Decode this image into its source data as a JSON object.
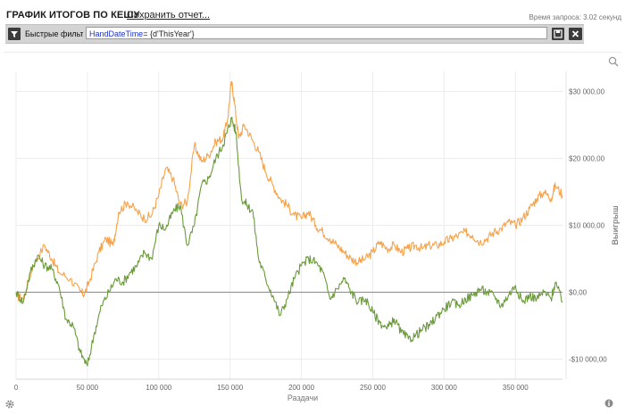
{
  "header": {
    "title": "ГРАФИК ИТОГОВ ПО КЕШУ",
    "save_link": "Сохранить отчет...",
    "query_time": "Время запроса: 3.02 секунд"
  },
  "filter_bar": {
    "label": "Быстрые фильтры",
    "expression_keyword": "HandDateTime",
    "expression_rest": "= {d'ThisYear'}",
    "icons": [
      "filter-icon",
      "save-icon",
      "close-icon"
    ]
  },
  "toolbar_icons": [
    "zoom-icon",
    "gear-icon",
    "info-icon"
  ],
  "colors": {
    "orange": "#f7a24a",
    "green": "#6a9a3a",
    "zero_line": "#8a8a8a",
    "grid": "#ececec"
  },
  "chart_data": {
    "type": "line",
    "title": "",
    "xlabel": "Раздачи",
    "ylabel": "Выигрыш",
    "xlim": [
      0,
      383000
    ],
    "ylim": [
      -13000,
      33000
    ],
    "x_ticks": [
      0,
      50000,
      100000,
      150000,
      200000,
      250000,
      300000,
      350000
    ],
    "x_tick_labels": [
      "0",
      "50 000",
      "100 000",
      "150 000",
      "200 000",
      "250 000",
      "300 000",
      "350 000"
    ],
    "y_ticks": [
      30000,
      20000,
      10000,
      0,
      -10000
    ],
    "y_tick_labels": [
      "$30 000,00",
      "$20 000,00",
      "$10 000,00",
      "$0,00",
      "-$10 000,00"
    ],
    "grid": true,
    "series": [
      {
        "color": "#f7a24a",
        "x": [
          0,
          5000,
          12000,
          20000,
          25000,
          30000,
          38000,
          45000,
          48000,
          52000,
          58000,
          63000,
          68000,
          72000,
          78000,
          85000,
          90000,
          95000,
          100000,
          105000,
          110000,
          115000,
          120000,
          125000,
          130000,
          135000,
          140000,
          145000,
          148000,
          151000,
          153000,
          156000,
          160000,
          165000,
          170000,
          175000,
          180000,
          185000,
          190000,
          195000,
          200000,
          205000,
          210000,
          215000,
          220000,
          225000,
          230000,
          235000,
          240000,
          245000,
          250000,
          255000,
          260000,
          265000,
          270000,
          275000,
          280000,
          285000,
          290000,
          295000,
          300000,
          305000,
          310000,
          315000,
          320000,
          325000,
          330000,
          335000,
          340000,
          345000,
          350000,
          355000,
          360000,
          365000,
          370000,
          375000,
          378000,
          383000
        ],
        "values": [
          -500,
          -1000,
          4000,
          7000,
          5000,
          3000,
          2000,
          0,
          -300,
          2000,
          6000,
          8000,
          7000,
          12000,
          13500,
          12000,
          11000,
          11500,
          14500,
          18500,
          17000,
          13000,
          13500,
          22000,
          19500,
          20500,
          22500,
          23000,
          25500,
          31500,
          28500,
          23000,
          25000,
          23000,
          21000,
          18000,
          16000,
          14000,
          13000,
          11500,
          11000,
          12000,
          10000,
          9000,
          8000,
          7000,
          6000,
          5000,
          4500,
          5000,
          6000,
          7500,
          6500,
          7000,
          6000,
          6500,
          7000,
          6500,
          7000,
          7000,
          7500,
          8000,
          8500,
          9000,
          8500,
          7500,
          8000,
          9000,
          9500,
          10500,
          10000,
          11000,
          12500,
          14000,
          15000,
          14000,
          16000,
          14500
        ]
      },
      {
        "color": "#6a9a3a",
        "x": [
          0,
          5000,
          10000,
          15000,
          20000,
          25000,
          30000,
          35000,
          40000,
          45000,
          50000,
          55000,
          60000,
          65000,
          70000,
          75000,
          80000,
          85000,
          90000,
          95000,
          100000,
          105000,
          110000,
          115000,
          120000,
          125000,
          130000,
          135000,
          140000,
          145000,
          148000,
          151000,
          154000,
          158000,
          162000,
          166000,
          170000,
          175000,
          180000,
          185000,
          190000,
          195000,
          200000,
          205000,
          210000,
          215000,
          220000,
          225000,
          230000,
          235000,
          240000,
          245000,
          250000,
          255000,
          260000,
          265000,
          270000,
          275000,
          280000,
          285000,
          290000,
          295000,
          300000,
          305000,
          310000,
          315000,
          320000,
          325000,
          330000,
          335000,
          340000,
          345000,
          350000,
          355000,
          360000,
          365000,
          370000,
          375000,
          378000,
          383000
        ],
        "values": [
          0,
          -1500,
          3000,
          5500,
          4000,
          3500,
          1000,
          -4000,
          -5000,
          -9000,
          -11000,
          -6000,
          -2000,
          0,
          2000,
          1500,
          3000,
          4000,
          6000,
          5000,
          10000,
          9500,
          12000,
          13000,
          7000,
          10000,
          16000,
          17000,
          20000,
          22000,
          24000,
          26000,
          24000,
          14000,
          13000,
          12000,
          5000,
          2000,
          -500,
          -3500,
          -1000,
          2000,
          4000,
          5000,
          4500,
          3000,
          -1000,
          500,
          2000,
          0,
          -1500,
          -1000,
          -3000,
          -4500,
          -5500,
          -4000,
          -6000,
          -7000,
          -6500,
          -5500,
          -5000,
          -3500,
          -2500,
          -1500,
          -2000,
          -1000,
          -500,
          500,
          0,
          -500,
          -2000,
          -500,
          1000,
          -1500,
          -500,
          -1000,
          0,
          -1000,
          1500,
          -1500
        ]
      }
    ]
  }
}
